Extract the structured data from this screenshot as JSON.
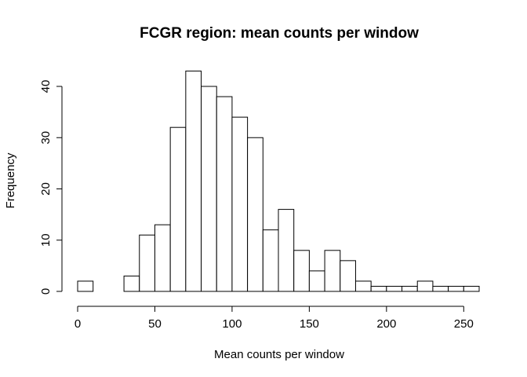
{
  "chart_data": {
    "type": "bar",
    "title": "FCGR region: mean counts per window",
    "xlabel": "Mean counts per window",
    "ylabel": "Frequency",
    "bin_width": 10,
    "bins": [
      {
        "start": 0,
        "end": 10,
        "count": 2
      },
      {
        "start": 10,
        "end": 20,
        "count": 0
      },
      {
        "start": 20,
        "end": 30,
        "count": 0
      },
      {
        "start": 30,
        "end": 40,
        "count": 3
      },
      {
        "start": 40,
        "end": 50,
        "count": 11
      },
      {
        "start": 50,
        "end": 60,
        "count": 13
      },
      {
        "start": 60,
        "end": 70,
        "count": 32
      },
      {
        "start": 70,
        "end": 80,
        "count": 43
      },
      {
        "start": 80,
        "end": 90,
        "count": 40
      },
      {
        "start": 90,
        "end": 100,
        "count": 38
      },
      {
        "start": 100,
        "end": 110,
        "count": 34
      },
      {
        "start": 110,
        "end": 120,
        "count": 30
      },
      {
        "start": 120,
        "end": 130,
        "count": 12
      },
      {
        "start": 130,
        "end": 140,
        "count": 16
      },
      {
        "start": 140,
        "end": 150,
        "count": 8
      },
      {
        "start": 150,
        "end": 160,
        "count": 4
      },
      {
        "start": 160,
        "end": 170,
        "count": 8
      },
      {
        "start": 170,
        "end": 180,
        "count": 6
      },
      {
        "start": 180,
        "end": 190,
        "count": 2
      },
      {
        "start": 190,
        "end": 200,
        "count": 1
      },
      {
        "start": 200,
        "end": 210,
        "count": 1
      },
      {
        "start": 210,
        "end": 220,
        "count": 1
      },
      {
        "start": 220,
        "end": 230,
        "count": 2
      },
      {
        "start": 230,
        "end": 240,
        "count": 1
      },
      {
        "start": 240,
        "end": 250,
        "count": 1
      },
      {
        "start": 250,
        "end": 260,
        "count": 1
      }
    ],
    "xlim": [
      0,
      260
    ],
    "ylim": [
      0,
      43
    ],
    "x_ticks": [
      0,
      50,
      100,
      150,
      200,
      250
    ],
    "x_tick_labels": [
      "0",
      "50",
      "100",
      "150",
      "200",
      "250"
    ],
    "y_ticks": [
      0,
      10,
      20,
      30,
      40
    ],
    "y_tick_labels": [
      "0",
      "10",
      "20",
      "30",
      "40"
    ],
    "grid": false,
    "legend": "none",
    "bar_fill": "#ffffff",
    "bar_stroke": "#000000"
  }
}
